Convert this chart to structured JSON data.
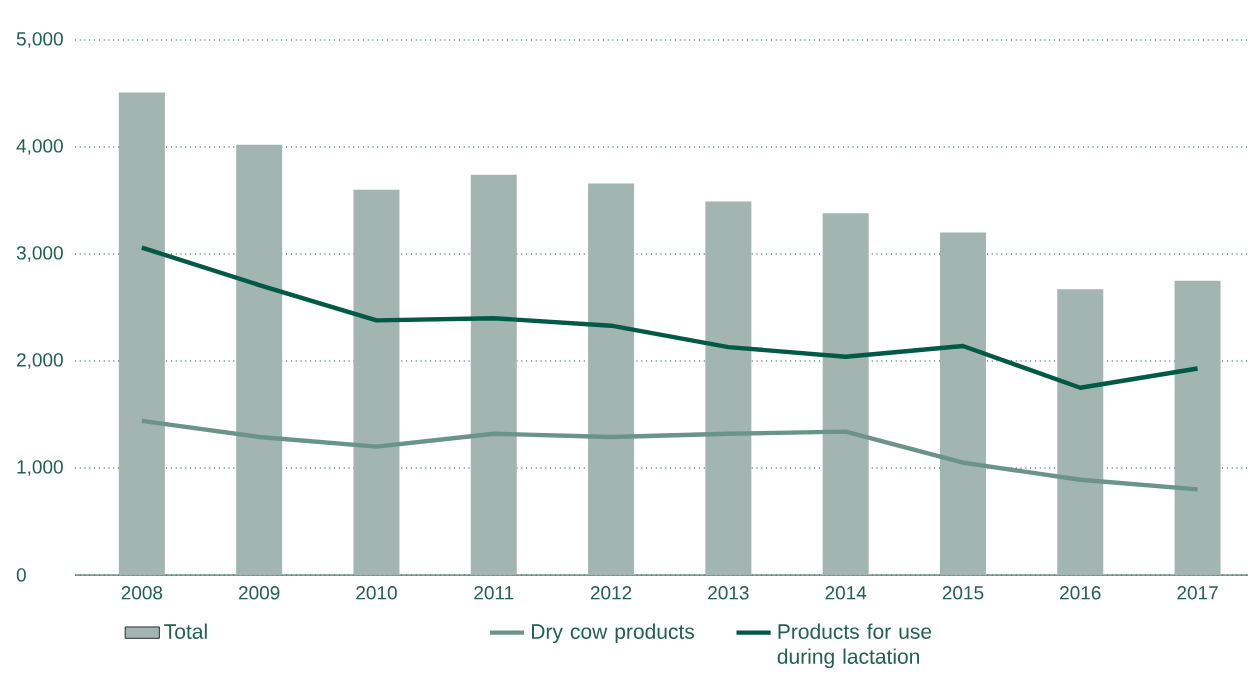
{
  "chart_data": {
    "type": "bar",
    "categories": [
      "2008",
      "2009",
      "2010",
      "2011",
      "2012",
      "2013",
      "2014",
      "2015",
      "2016",
      "2017"
    ],
    "series": [
      {
        "name": "Total",
        "color": "#a2b5b1",
        "values": [
          4510,
          4020,
          3600,
          3740,
          3660,
          3490,
          3380,
          3200,
          2670,
          2750
        ]
      },
      {
        "name": "Dry cow products",
        "type": "line",
        "color": "#6a9489",
        "values": [
          1440,
          1290,
          1200,
          1320,
          1290,
          1320,
          1340,
          1050,
          890,
          800
        ]
      },
      {
        "name": "Products for use during lactation",
        "type": "line",
        "color": "#005a46",
        "values": [
          3060,
          2710,
          2380,
          2400,
          2330,
          2130,
          2040,
          2140,
          1750,
          1930
        ]
      }
    ],
    "ylim": [
      0,
      5000
    ],
    "yticks": [
      0,
      {
        "value": 1000,
        "label": "1,000"
      },
      {
        "value": 2000,
        "label": "2,000"
      },
      {
        "value": 3000,
        "label": "3,000"
      },
      {
        "value": 4000,
        "label": "4,000"
      },
      {
        "value": 5000,
        "label": "5,000"
      }
    ],
    "grid": "y",
    "legend": "bottom",
    "marker": "none",
    "line_style": "solid"
  }
}
